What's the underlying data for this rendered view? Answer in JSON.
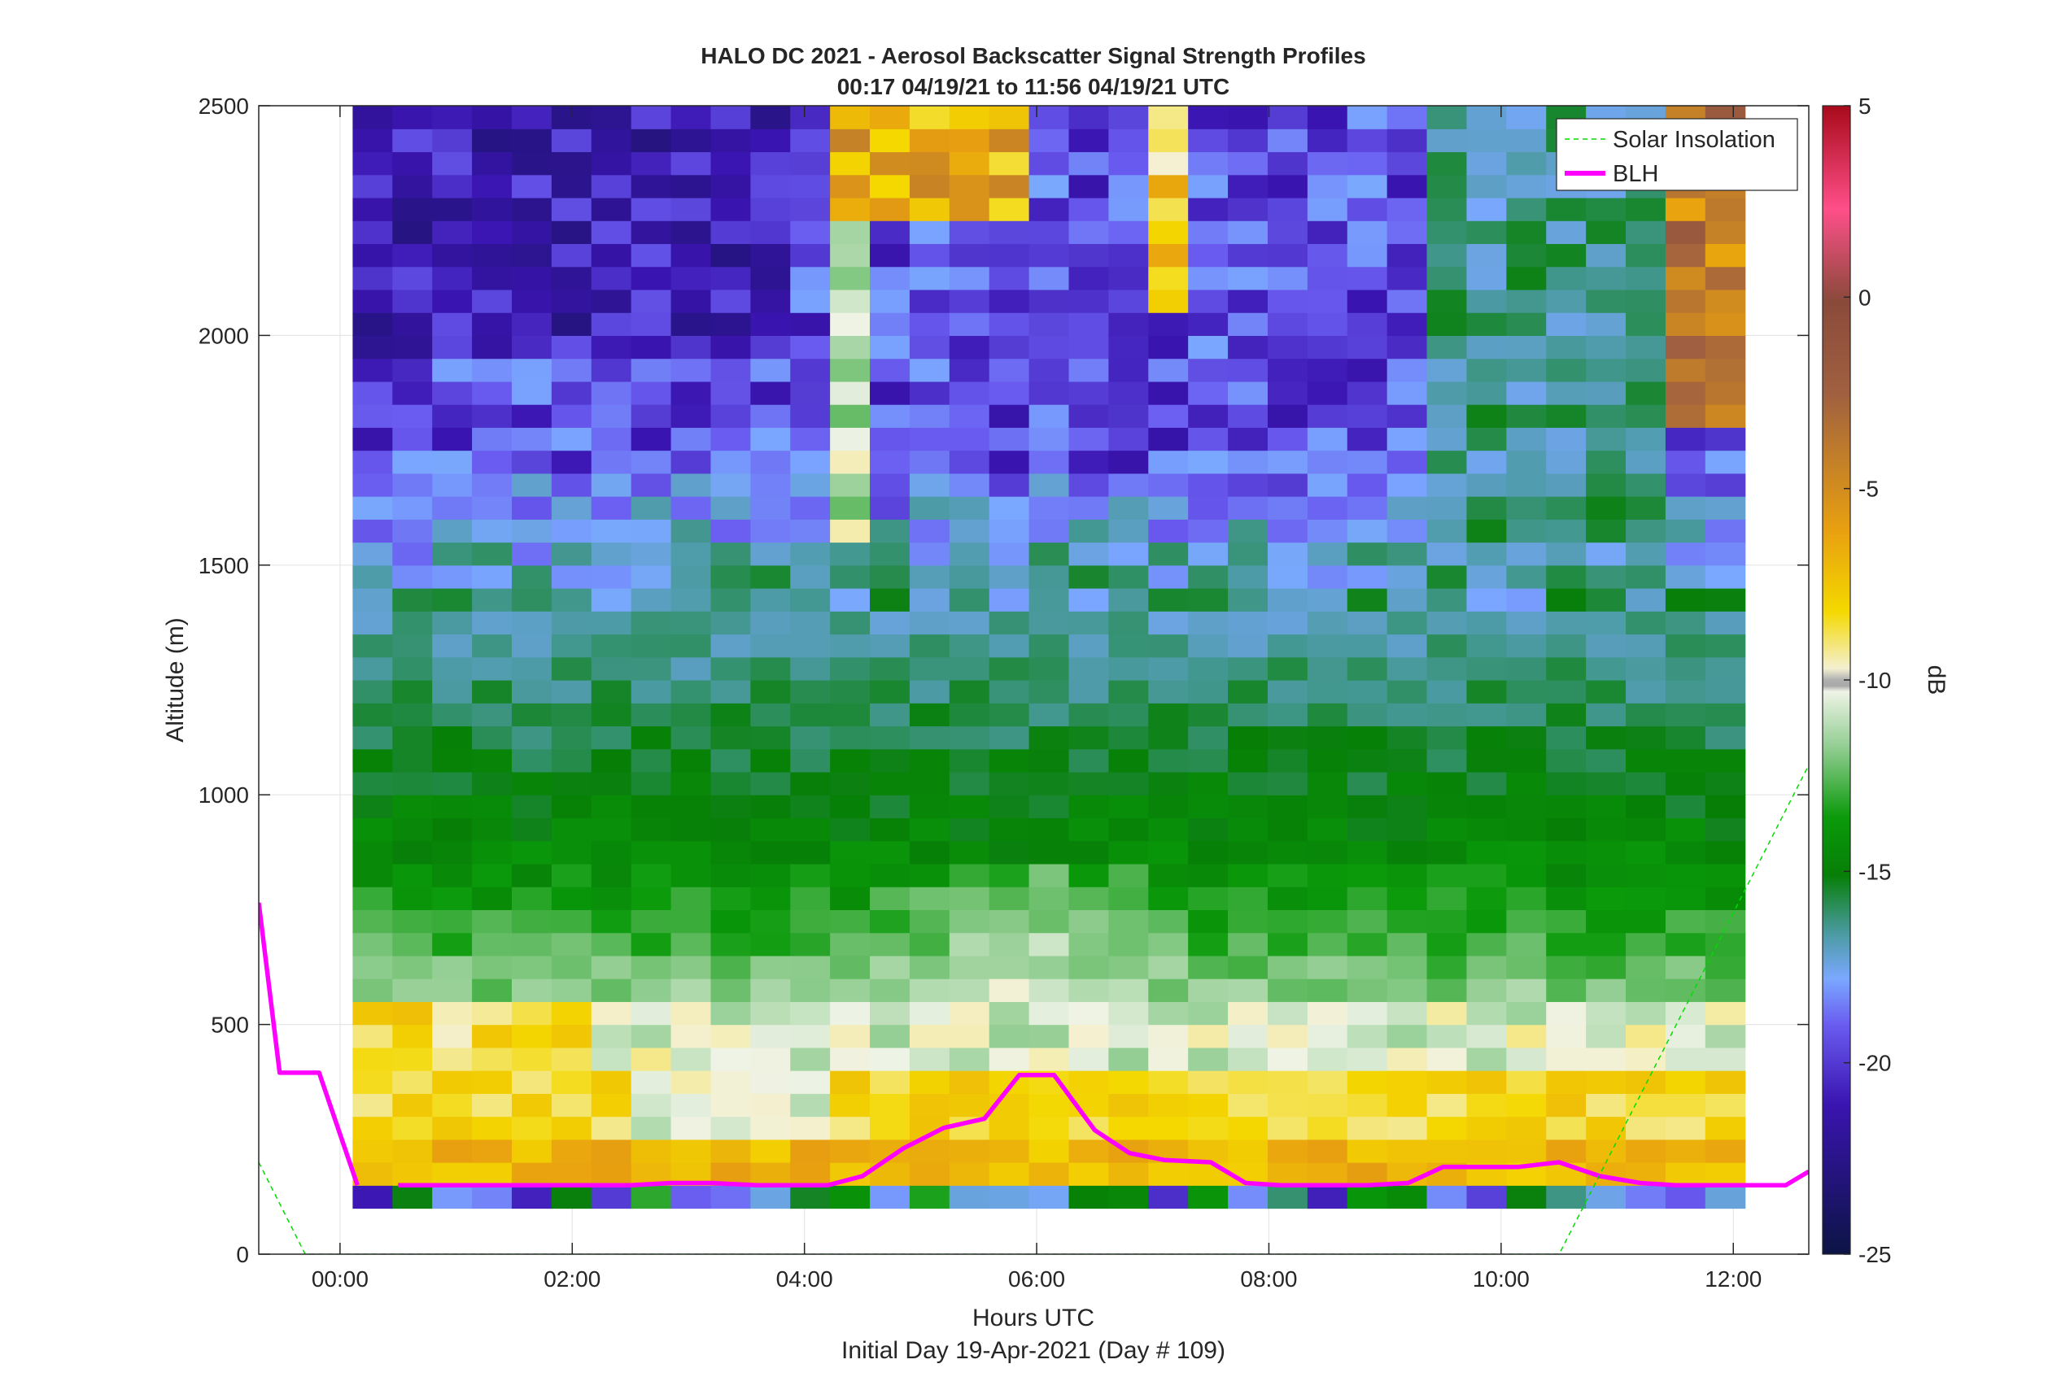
{
  "chart_data": {
    "type": "heatmap",
    "title": "HALO DC 2021 - Aerosol Backscatter Signal Strength Profiles",
    "subtitle": "00:17 04/19/21 to 11:56 04/19/21  UTC",
    "xlabel": "Hours UTC",
    "xlabel2": "Initial Day 19-Apr-2021 (Day # 109)",
    "ylabel": "Altitude (m)",
    "colorbar_label": "dB",
    "xlim_hours": [
      -0.7,
      12.65
    ],
    "ylim": [
      0,
      2500
    ],
    "x_ticks": [
      {
        "value": 0,
        "label": "00:00"
      },
      {
        "value": 2,
        "label": "02:00"
      },
      {
        "value": 4,
        "label": "04:00"
      },
      {
        "value": 6,
        "label": "06:00"
      },
      {
        "value": 8,
        "label": "08:00"
      },
      {
        "value": 10,
        "label": "10:00"
      },
      {
        "value": 12,
        "label": "12:00"
      }
    ],
    "y_ticks": [
      {
        "value": 0,
        "label": "0"
      },
      {
        "value": 500,
        "label": "500"
      },
      {
        "value": 1000,
        "label": "1000"
      },
      {
        "value": 1500,
        "label": "1500"
      },
      {
        "value": 2000,
        "label": "2000"
      },
      {
        "value": 2500,
        "label": "2500"
      }
    ],
    "colorbar_ticks": [
      {
        "value": 5,
        "label": "5"
      },
      {
        "value": 0,
        "label": "0"
      },
      {
        "value": -5,
        "label": "-5"
      },
      {
        "value": -10,
        "label": "-10"
      },
      {
        "value": -15,
        "label": "-15"
      },
      {
        "value": -20,
        "label": "-20"
      },
      {
        "value": -25,
        "label": "-25"
      }
    ],
    "clim": [
      -25,
      5
    ],
    "grid": true,
    "legend": {
      "placement": "top-right",
      "entries": [
        "Solar Insolation",
        "BLH"
      ]
    },
    "colors": {
      "blh": "#ff00ff",
      "solar": "#00dd00"
    },
    "heatmap": {
      "time_start_hours": 0.28,
      "time_end_hours": 11.93,
      "n_profiles": 35,
      "alt_bottom_m": 100,
      "alt_top_m": 2500,
      "bin_m": 50,
      "description_layers": [
        {
          "alt_max": 150,
          "dB": -17
        },
        {
          "alt_max": 450,
          "dB": -8
        },
        {
          "alt_max": 850,
          "dB": -12
        },
        {
          "alt_max": 1400,
          "dB": -16
        },
        {
          "alt_max": 2500,
          "dB": -20
        }
      ]
    },
    "series": [
      {
        "name": "BLH",
        "segments": [
          {
            "x": [
              -0.7,
              -0.52,
              -0.18,
              0.15
            ],
            "y": [
              765,
              395,
              395,
              150
            ]
          },
          {
            "x": [
              0.5,
              1.0,
              2.0,
              2.5,
              2.85,
              3.2,
              3.6,
              4.2,
              4.5,
              4.85,
              5.2,
              5.55,
              5.85,
              6.15,
              6.5,
              6.8,
              7.1,
              7.5,
              7.8,
              8.1,
              8.5,
              8.85,
              9.2,
              9.5,
              10.15,
              10.5,
              10.85,
              11.2,
              11.5,
              12.0,
              12.45,
              12.65
            ],
            "y": [
              150,
              150,
              150,
              150,
              155,
              155,
              150,
              150,
              170,
              230,
              275,
              295,
              390,
              390,
              270,
              220,
              205,
              200,
              155,
              150,
              150,
              150,
              155,
              190,
              190,
              200,
              170,
              155,
              150,
              150,
              150,
              180
            ]
          }
        ]
      },
      {
        "name": "Solar Insolation",
        "x": [
          -0.7,
          -0.3,
          10.5,
          12.65
        ],
        "y": [
          200,
          0,
          0,
          1065
        ]
      }
    ]
  }
}
